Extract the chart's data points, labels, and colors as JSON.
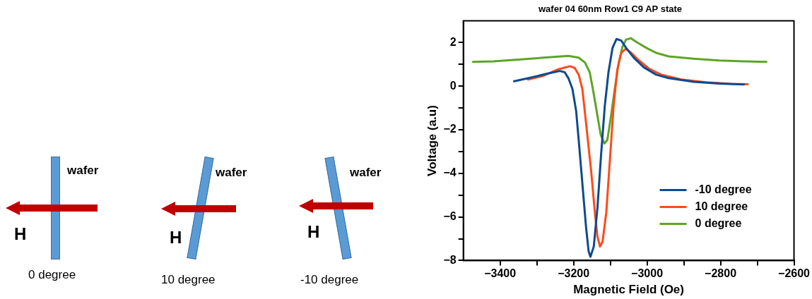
{
  "chart_data": {
    "type": "line",
    "title": "wafer 04 60nm Row1 C9 AP state",
    "xlabel": "Magnetic Field (Oe)",
    "ylabel": "Voltage (a.u)",
    "xlim": [
      -3500,
      -2600
    ],
    "xticks": [
      -3400,
      {
        "value": -3300,
        "label": null
      },
      -3200,
      {
        "value": -3100,
        "label": null
      },
      -3000,
      {
        "value": -2900,
        "label": null
      },
      -2800,
      {
        "value": -2700,
        "label": null
      },
      -2600
    ],
    "ylim": [
      -8,
      3
    ],
    "yticks": [
      -8,
      {
        "value": -7,
        "label": null
      },
      -6,
      {
        "value": -5,
        "label": null
      },
      -4,
      {
        "value": -3,
        "label": null
      },
      -2,
      {
        "value": -1,
        "label": null
      },
      0,
      {
        "value": 1,
        "label": null
      },
      2
    ],
    "grid": false,
    "legend": "bottom right",
    "marker": "none",
    "line_style": "solid",
    "series": [
      {
        "name": "-10 degree",
        "color": "#0d4a8f",
        "x": [
          -3362,
          -3316,
          -3268,
          -3237,
          -3224,
          -3214,
          -3203,
          -3193,
          -3186,
          -3176,
          -3166,
          -3159,
          -3154,
          -3145,
          -3135,
          -3125,
          -3115,
          -3105,
          -3094,
          -3083,
          -3070,
          -3057,
          -3036,
          -3009,
          -2975,
          -2941,
          -2873,
          -2804,
          -2736
        ],
        "values": [
          0.23,
          0.4,
          0.59,
          0.7,
          0.64,
          0.37,
          -0.13,
          -1.13,
          -2.47,
          -4.47,
          -6.47,
          -7.58,
          -7.83,
          -7.36,
          -5.58,
          -3.13,
          -0.91,
          0.64,
          1.76,
          2.17,
          2.09,
          1.76,
          1.31,
          0.87,
          0.53,
          0.37,
          0.2,
          0.12,
          0.08
        ]
      },
      {
        "name": "10 degree",
        "color": "#ff4a1c",
        "x": [
          -3324,
          -3282,
          -3241,
          -3210,
          -3197,
          -3186,
          -3176,
          -3166,
          -3152,
          -3142,
          -3135,
          -3128,
          -3121,
          -3111,
          -3101,
          -3091,
          -3081,
          -3070,
          -3058,
          -3043,
          -3023,
          -2995,
          -2961,
          -2907,
          -2838,
          -2770,
          -2726
        ],
        "values": [
          0.31,
          0.48,
          0.78,
          0.92,
          0.84,
          0.53,
          -0.13,
          -1.69,
          -3.91,
          -5.8,
          -6.91,
          -7.36,
          -7.13,
          -5.8,
          -3.36,
          -0.91,
          0.76,
          1.53,
          1.72,
          1.53,
          1.2,
          0.81,
          0.53,
          0.31,
          0.18,
          0.11,
          0.09
        ]
      },
      {
        "name": "0 degree",
        "color": "#5ea526",
        "x": [
          -3474,
          -3418,
          -3350,
          -3282,
          -3214,
          -3186,
          -3169,
          -3156,
          -3145,
          -3135,
          -3126,
          -3116,
          -3108,
          -3098,
          -3087,
          -3077,
          -3067,
          -3057,
          -3044,
          -3029,
          -3002,
          -2975,
          -2941,
          -2873,
          -2804,
          -2736,
          -2675
        ],
        "values": [
          1.12,
          1.14,
          1.22,
          1.31,
          1.39,
          1.31,
          1.09,
          0.64,
          -0.36,
          -1.36,
          -2.24,
          -2.63,
          -2.47,
          -1.36,
          -0.02,
          1.09,
          1.81,
          2.14,
          2.2,
          2.03,
          1.76,
          1.53,
          1.37,
          1.26,
          1.18,
          1.14,
          1.12
        ]
      }
    ],
    "annotations": [
      "wafer",
      "H",
      "0 degree",
      "wafer",
      "H",
      "10 degree",
      "wafer",
      "H",
      "-10 degree"
    ]
  }
}
